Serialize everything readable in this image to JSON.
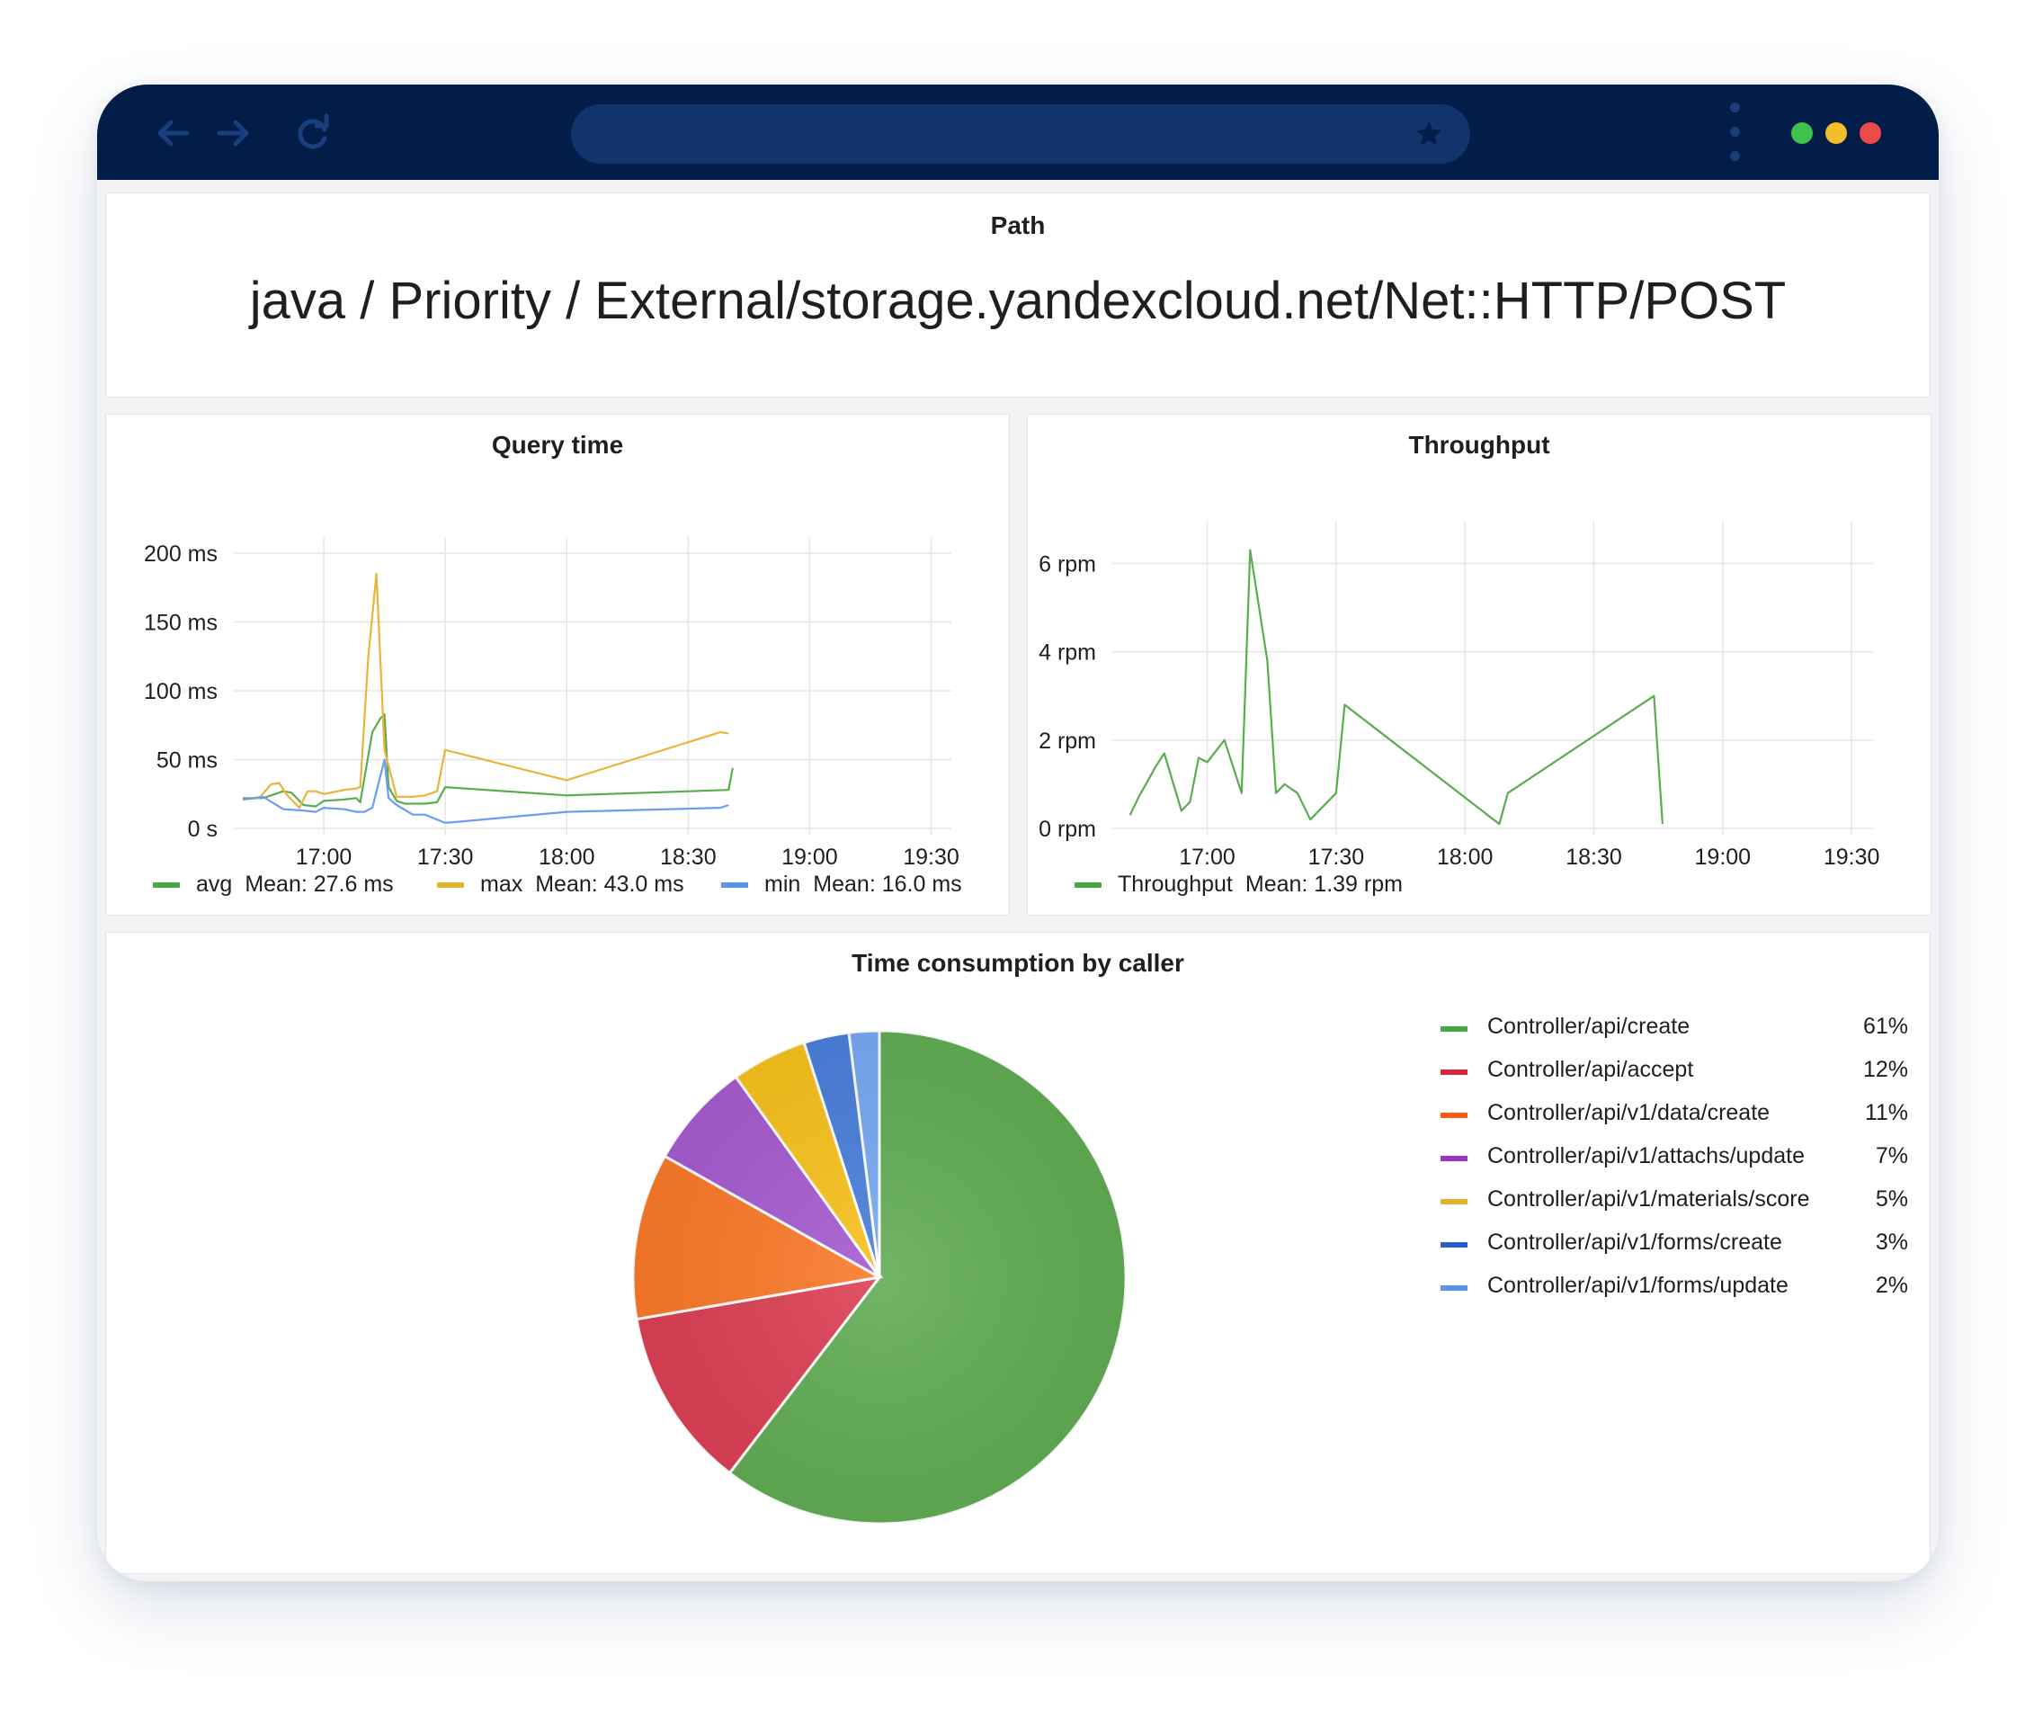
{
  "browser": {
    "back_icon": "arrow-left-icon",
    "forward_icon": "arrow-right-icon",
    "reload_icon": "reload-icon",
    "bookmark_icon": "star-icon",
    "menu_icon": "kebab-menu-icon",
    "window_dots": [
      "#3fc24a",
      "#f3bd2c",
      "#ec4b4b"
    ]
  },
  "path_panel": {
    "title": "Path",
    "value": "java / Priority / External/storage.yandexcloud.net/Net::HTTP/POST"
  },
  "query_time": {
    "title": "Query time",
    "legend": [
      {
        "name": "avg",
        "mean": "Mean: 27.6 ms",
        "color": "#47a542"
      },
      {
        "name": "max",
        "mean": "Mean: 43.0 ms",
        "color": "#e3b32c"
      },
      {
        "name": "min",
        "mean": "Mean: 16.0 ms",
        "color": "#5b8ff0"
      }
    ]
  },
  "throughput": {
    "title": "Throughput",
    "legend": [
      {
        "name": "Throughput",
        "mean": "Mean: 1.39 rpm",
        "color": "#47a542"
      }
    ]
  },
  "time_consumption": {
    "title": "Time consumption by caller",
    "legend": [
      {
        "name": "Controller/api/create",
        "value": "61%",
        "color": "#47a542"
      },
      {
        "name": "Controller/api/accept",
        "value": "12%",
        "color": "#d9263d"
      },
      {
        "name": "Controller/api/v1/data/create",
        "value": "11%",
        "color": "#fa5a14"
      },
      {
        "name": "Controller/api/v1/attachs/update",
        "value": "7%",
        "color": "#9c33c8"
      },
      {
        "name": "Controller/api/v1/materials/score",
        "value": "5%",
        "color": "#e3b32c"
      },
      {
        "name": "Controller/api/v1/forms/create",
        "value": "3%",
        "color": "#2a5cd0"
      },
      {
        "name": "Controller/api/v1/forms/update",
        "value": "2%",
        "color": "#5b8ff0"
      }
    ]
  },
  "chart_data": [
    {
      "type": "line",
      "title": "Query time",
      "x_ticks": [
        "17:00",
        "17:30",
        "18:00",
        "18:30",
        "19:00",
        "19:30"
      ],
      "y_ticks": [
        "0 s",
        "50 ms",
        "100 ms",
        "150 ms",
        "200 ms"
      ],
      "xlim": [
        "16:40",
        "19:35"
      ],
      "ylim": [
        0,
        200
      ],
      "grid": true,
      "legend_position": "bottom",
      "series": [
        {
          "name": "avg",
          "color": "#5aad4f",
          "x": [
            "16:40",
            "16:45",
            "16:50",
            "16:52",
            "16:55",
            "16:58",
            "17:00",
            "17:05",
            "17:08",
            "17:09",
            "17:12",
            "17:14",
            "17:15",
            "17:16",
            "17:18",
            "17:20",
            "17:25",
            "17:28",
            "17:30",
            "18:00",
            "18:40",
            "18:41"
          ],
          "y": [
            22,
            22,
            27,
            26,
            17,
            16,
            20,
            21,
            22,
            19,
            70,
            80,
            83,
            30,
            20,
            18,
            18,
            19,
            30,
            24,
            28,
            44
          ]
        },
        {
          "name": "max",
          "color": "#e6b53a",
          "x": [
            "16:40",
            "16:44",
            "16:47",
            "16:49",
            "16:51",
            "16:54",
            "16:56",
            "16:58",
            "17:00",
            "17:05",
            "17:08",
            "17:09",
            "17:11",
            "17:13",
            "17:15",
            "17:18",
            "17:22",
            "17:25",
            "17:28",
            "17:30",
            "18:00",
            "18:38",
            "18:40"
          ],
          "y": [
            21,
            22,
            32,
            33,
            24,
            15,
            27,
            27,
            25,
            28,
            29,
            30,
            125,
            185,
            57,
            23,
            23,
            24,
            27,
            57,
            35,
            70,
            69
          ]
        },
        {
          "name": "min",
          "color": "#6d9cf0",
          "x": [
            "16:40",
            "16:45",
            "16:50",
            "16:55",
            "16:58",
            "17:00",
            "17:05",
            "17:08",
            "17:10",
            "17:12",
            "17:15",
            "17:16",
            "17:18",
            "17:22",
            "17:25",
            "17:30",
            "18:00",
            "18:38",
            "18:40"
          ],
          "y": [
            21,
            23,
            14,
            13,
            12,
            15,
            14,
            12,
            12,
            15,
            50,
            22,
            17,
            10,
            10,
            4,
            12,
            15,
            17
          ]
        }
      ]
    },
    {
      "type": "line",
      "title": "Throughput",
      "x_ticks": [
        "17:00",
        "17:30",
        "18:00",
        "18:30",
        "19:00",
        "19:30"
      ],
      "y_ticks": [
        "0 rpm",
        "2 rpm",
        "4 rpm",
        "6 rpm"
      ],
      "xlim": [
        "16:40",
        "19:35"
      ],
      "ylim": [
        0,
        6.6
      ],
      "grid": true,
      "legend_position": "bottom",
      "series": [
        {
          "name": "Throughput",
          "color": "#5aad4f",
          "x": [
            "16:42",
            "16:44",
            "16:48",
            "16:50",
            "16:54",
            "16:56",
            "16:58",
            "17:00",
            "17:04",
            "17:08",
            "17:10",
            "17:14",
            "17:16",
            "17:18",
            "17:21",
            "17:24",
            "17:26",
            "17:30",
            "17:32",
            "18:08",
            "18:10",
            "18:44",
            "18:46"
          ],
          "y": [
            0.3,
            0.7,
            1.4,
            1.7,
            0.4,
            0.6,
            1.6,
            1.5,
            2.0,
            0.8,
            6.3,
            3.8,
            0.8,
            1.0,
            0.8,
            0.2,
            0.4,
            0.8,
            2.8,
            0.1,
            0.8,
            3.0,
            0.1
          ]
        }
      ]
    },
    {
      "type": "pie",
      "title": "Time consumption by caller",
      "categories": [
        "Controller/api/create",
        "Controller/api/accept",
        "Controller/api/v1/data/create",
        "Controller/api/v1/attachs/update",
        "Controller/api/v1/materials/score",
        "Controller/api/v1/forms/create",
        "Controller/api/v1/forms/update"
      ],
      "values": [
        61,
        12,
        11,
        7,
        5,
        3,
        2
      ],
      "colors": [
        "#62ad55",
        "#dd4055",
        "#fb7a2a",
        "#a75cd0",
        "#f8c21d",
        "#4a80dc",
        "#79a9f4"
      ],
      "legend_position": "right"
    }
  ]
}
